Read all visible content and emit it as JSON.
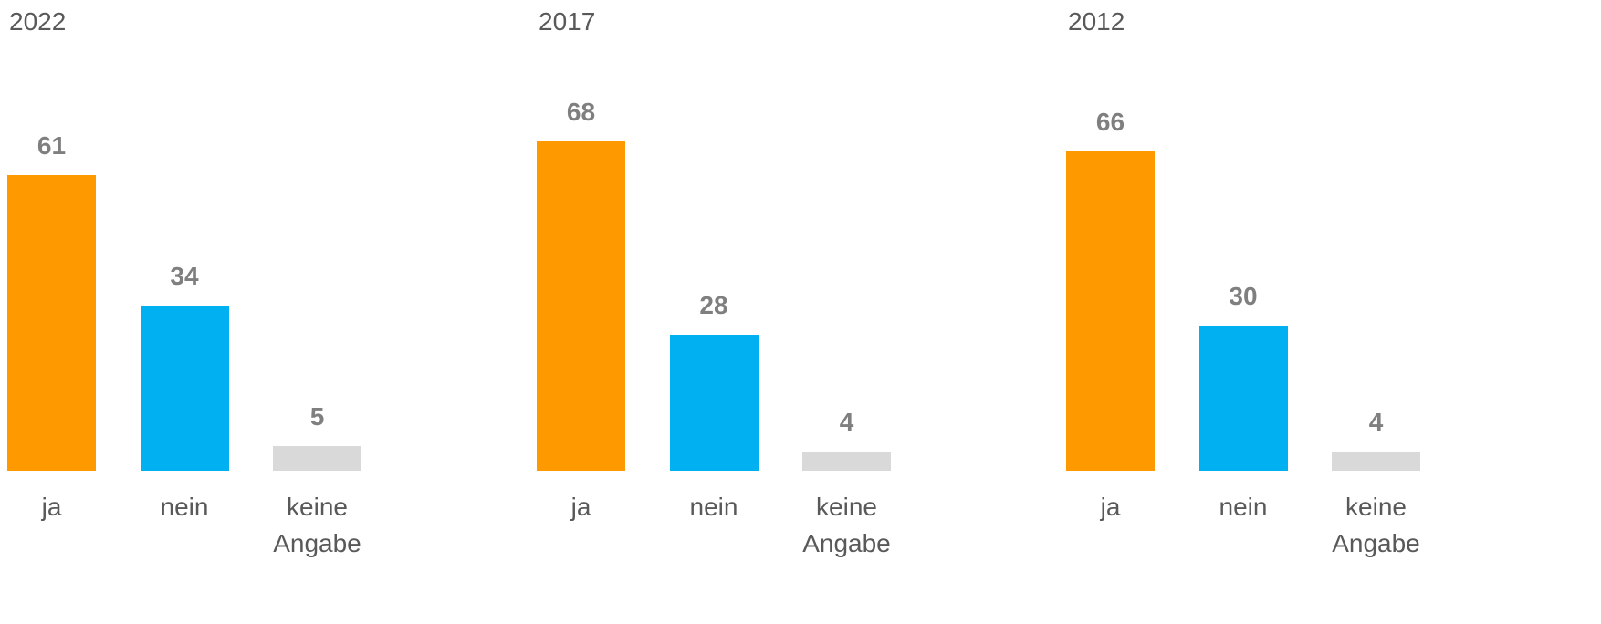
{
  "chart_data": [
    {
      "type": "bar",
      "title": "2022",
      "categories": [
        "ja",
        "nein",
        "keine Angabe"
      ],
      "values": [
        61,
        34,
        5
      ],
      "colors": [
        "#ff9900",
        "#00b0f0",
        "#d9d9d9"
      ]
    },
    {
      "type": "bar",
      "title": "2017",
      "categories": [
        "ja",
        "nein",
        "keine Angabe"
      ],
      "values": [
        68,
        28,
        4
      ],
      "colors": [
        "#ff9900",
        "#00b0f0",
        "#d9d9d9"
      ]
    },
    {
      "type": "bar",
      "title": "2012",
      "categories": [
        "ja",
        "nein",
        "keine Angabe"
      ],
      "values": [
        66,
        30,
        4
      ],
      "colors": [
        "#ff9900",
        "#00b0f0",
        "#d9d9d9"
      ]
    }
  ]
}
